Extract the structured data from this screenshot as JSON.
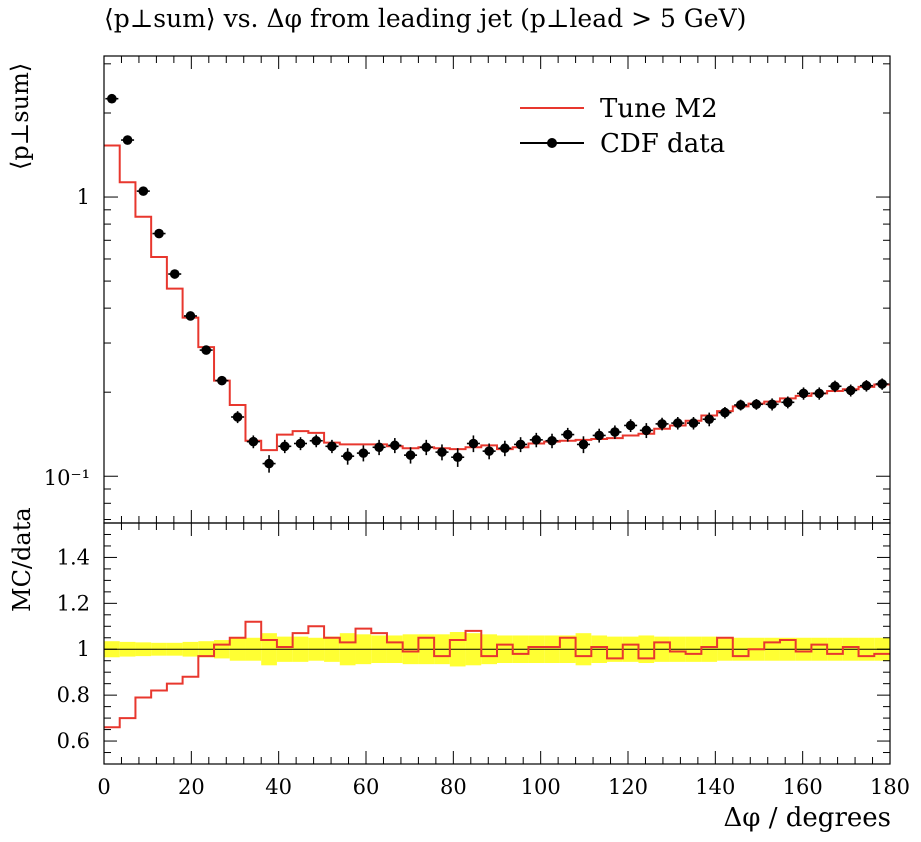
{
  "title": "⟨p⊥sum⟩ vs. Δφ from leading jet (p⊥lead > 5 GeV)",
  "chart_data": [
    {
      "type": "line",
      "panel": "main",
      "title": "⟨p⊥sum⟩ vs. Δφ from leading jet (p⊥lead > 5 GeV)",
      "xlabel": "Δφ / degrees",
      "ylabel": "⟨p⊥sum⟩",
      "xlim": [
        0,
        180
      ],
      "ylim": [
        0.068,
        3.2
      ],
      "yscale": "log",
      "ytick_labels": [
        "1",
        "10⁻¹"
      ],
      "legend_position": "top-right",
      "series": [
        {
          "name": "Tune M2",
          "color": "#e8372e",
          "style": "step",
          "bin_edges": [
            0,
            3.6,
            7.2,
            10.8,
            14.4,
            18,
            21.6,
            25.2,
            28.8,
            32.4,
            36,
            39.6,
            43.2,
            46.8,
            50.4,
            54,
            57.6,
            61.2,
            64.8,
            68.4,
            72,
            75.6,
            79.2,
            82.8,
            86.4,
            90,
            93.6,
            97.2,
            100.8,
            104.4,
            108,
            111.6,
            115.2,
            118.8,
            122.4,
            126,
            129.6,
            133.2,
            136.8,
            140.4,
            144,
            147.6,
            151.2,
            154.8,
            158.4,
            162,
            165.6,
            169.2,
            172.8,
            176.4,
            180
          ],
          "values": [
            1.53,
            1.13,
            0.85,
            0.61,
            0.47,
            0.37,
            0.29,
            0.22,
            0.18,
            0.134,
            0.124,
            0.141,
            0.145,
            0.143,
            0.132,
            0.13,
            0.13,
            0.13,
            0.128,
            0.126,
            0.127,
            0.126,
            0.125,
            0.127,
            0.129,
            0.125,
            0.127,
            0.131,
            0.133,
            0.134,
            0.135,
            0.136,
            0.137,
            0.14,
            0.142,
            0.148,
            0.152,
            0.158,
            0.165,
            0.171,
            0.178,
            0.182,
            0.185,
            0.19,
            0.194,
            0.198,
            0.202,
            0.205,
            0.209,
            0.213
          ]
        },
        {
          "name": "CDF data",
          "color": "#000000",
          "style": "points",
          "x": [
            1.8,
            5.4,
            9,
            12.6,
            16.2,
            19.8,
            23.4,
            27,
            30.6,
            34.2,
            37.8,
            41.4,
            45,
            48.6,
            52.2,
            55.8,
            59.4,
            63,
            66.6,
            70.2,
            73.8,
            77.4,
            81,
            84.6,
            88.2,
            91.8,
            95.4,
            99,
            102.6,
            106.2,
            109.8,
            113.4,
            117,
            120.6,
            124.2,
            127.8,
            131.4,
            135,
            138.6,
            142.2,
            145.8,
            149.4,
            153,
            156.6,
            160.2,
            163.8,
            167.4,
            171,
            174.6,
            178.2
          ],
          "y": [
            2.25,
            1.6,
            1.05,
            0.74,
            0.53,
            0.375,
            0.283,
            0.22,
            0.163,
            0.133,
            0.111,
            0.128,
            0.131,
            0.134,
            0.128,
            0.118,
            0.121,
            0.127,
            0.129,
            0.119,
            0.127,
            0.122,
            0.117,
            0.131,
            0.123,
            0.126,
            0.13,
            0.135,
            0.134,
            0.141,
            0.13,
            0.14,
            0.144,
            0.152,
            0.146,
            0.154,
            0.155,
            0.155,
            0.16,
            0.169,
            0.18,
            0.181,
            0.181,
            0.184,
            0.198,
            0.198,
            0.21,
            0.203,
            0.211,
            0.214
          ],
          "yerr": [
            0.08,
            0.05,
            0.03,
            0.02,
            0.015,
            0.012,
            0.01,
            0.008,
            0.008,
            0.007,
            0.008,
            0.007,
            0.007,
            0.007,
            0.007,
            0.008,
            0.008,
            0.008,
            0.008,
            0.008,
            0.008,
            0.008,
            0.009,
            0.009,
            0.008,
            0.008,
            0.008,
            0.008,
            0.008,
            0.008,
            0.009,
            0.008,
            0.008,
            0.008,
            0.009,
            0.008,
            0.008,
            0.008,
            0.009,
            0.008,
            0.008,
            0.008,
            0.009,
            0.009,
            0.01,
            0.01,
            0.01,
            0.01,
            0.01,
            0.01
          ]
        }
      ]
    },
    {
      "type": "line",
      "panel": "ratio",
      "ylabel": "MC/data",
      "xlabel": "Δφ / degrees",
      "xlim": [
        0,
        180
      ],
      "ylim": [
        0.5,
        1.55
      ],
      "xticks": [
        0,
        20,
        40,
        60,
        80,
        100,
        120,
        140,
        160,
        180
      ],
      "yticks": [
        0.6,
        0.8,
        1,
        1.2,
        1.4
      ],
      "ytick_labels": [
        "0.6",
        "0.8",
        "1",
        "1.2",
        "1.4"
      ],
      "band_color": "#ffff33",
      "series": [
        {
          "name": "Tune M2",
          "color": "#e8372e",
          "style": "step",
          "bin_edges": [
            0,
            3.6,
            7.2,
            10.8,
            14.4,
            18,
            21.6,
            25.2,
            28.8,
            32.4,
            36,
            39.6,
            43.2,
            46.8,
            50.4,
            54,
            57.6,
            61.2,
            64.8,
            68.4,
            72,
            75.6,
            79.2,
            82.8,
            86.4,
            90,
            93.6,
            97.2,
            100.8,
            104.4,
            108,
            111.6,
            115.2,
            118.8,
            122.4,
            126,
            129.6,
            133.2,
            136.8,
            140.4,
            144,
            147.6,
            151.2,
            154.8,
            158.4,
            162,
            165.6,
            169.2,
            172.8,
            176.4,
            180
          ],
          "values": [
            0.66,
            0.7,
            0.79,
            0.82,
            0.85,
            0.88,
            0.97,
            1.02,
            1.05,
            1.12,
            1.04,
            1.01,
            1.07,
            1.1,
            1.05,
            1.03,
            1.09,
            1.07,
            1.03,
            0.99,
            1.05,
            0.97,
            1.04,
            1.08,
            0.97,
            1.02,
            0.98,
            1.01,
            1.01,
            1.05,
            0.97,
            1.01,
            0.96,
            1.02,
            0.96,
            1.03,
            0.99,
            0.98,
            1.01,
            1.05,
            0.97,
            1.0,
            1.03,
            1.04,
            0.99,
            1.02,
            0.98,
            1.01,
            0.97,
            0.98
          ]
        },
        {
          "name": "data uncertainty band",
          "style": "band",
          "bin_edges": [
            0,
            3.6,
            7.2,
            10.8,
            14.4,
            18,
            21.6,
            25.2,
            28.8,
            32.4,
            36,
            39.6,
            43.2,
            46.8,
            50.4,
            54,
            57.6,
            61.2,
            64.8,
            68.4,
            72,
            75.6,
            79.2,
            82.8,
            86.4,
            90,
            93.6,
            97.2,
            100.8,
            104.4,
            108,
            111.6,
            115.2,
            118.8,
            122.4,
            126,
            129.6,
            133.2,
            136.8,
            140.4,
            144,
            147.6,
            151.2,
            154.8,
            158.4,
            162,
            165.6,
            169.2,
            172.8,
            176.4,
            180
          ],
          "half_width": [
            0.035,
            0.032,
            0.03,
            0.028,
            0.028,
            0.032,
            0.035,
            0.04,
            0.05,
            0.05,
            0.07,
            0.055,
            0.055,
            0.05,
            0.055,
            0.07,
            0.065,
            0.06,
            0.06,
            0.065,
            0.065,
            0.065,
            0.075,
            0.07,
            0.065,
            0.06,
            0.06,
            0.06,
            0.06,
            0.06,
            0.07,
            0.06,
            0.055,
            0.055,
            0.06,
            0.055,
            0.055,
            0.055,
            0.055,
            0.05,
            0.05,
            0.05,
            0.05,
            0.05,
            0.05,
            0.05,
            0.05,
            0.05,
            0.05,
            0.05
          ]
        }
      ]
    }
  ]
}
